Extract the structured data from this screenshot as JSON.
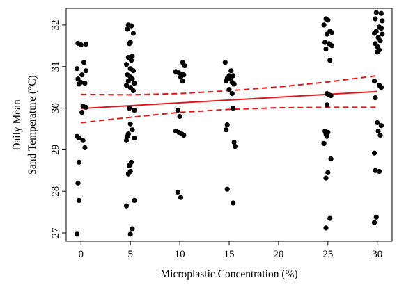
{
  "chart_data": {
    "type": "scatter",
    "xlabel": "Microplastic Concentration (%)",
    "ylabel_lines": [
      "Daily Mean",
      "Sand Temperature (°C)"
    ],
    "xlim": [
      -1.5,
      31.5
    ],
    "ylim": [
      26.8,
      32.4
    ],
    "x_ticks": [
      0,
      5,
      10,
      15,
      20,
      25,
      30
    ],
    "y_ticks": [
      27,
      28,
      29,
      30,
      31,
      32
    ],
    "grid": false,
    "legend": "none",
    "colors": {
      "points": "#000000",
      "fit": "#e8161b",
      "ci": "#e8161b"
    },
    "fit_line": {
      "style": "solid",
      "x": [
        0,
        30
      ],
      "y": [
        29.99,
        30.4
      ]
    },
    "ci_upper": {
      "style": "dashed",
      "x": [
        0,
        5,
        10,
        15,
        20,
        25,
        30
      ],
      "y": [
        30.33,
        30.32,
        30.35,
        30.42,
        30.51,
        30.63,
        30.78
      ]
    },
    "ci_lower": {
      "style": "dashed",
      "x": [
        0,
        5,
        10,
        15,
        20,
        25,
        30
      ],
      "y": [
        29.65,
        29.78,
        29.9,
        29.97,
        30.01,
        30.02,
        30.02
      ]
    },
    "points": [
      {
        "x": -0.3,
        "y": 31.56
      },
      {
        "x": 0.0,
        "y": 31.52
      },
      {
        "x": 0.5,
        "y": 31.54
      },
      {
        "x": 0.3,
        "y": 31.1
      },
      {
        "x": -0.4,
        "y": 30.95
      },
      {
        "x": 0.5,
        "y": 30.9
      },
      {
        "x": 0.1,
        "y": 30.8
      },
      {
        "x": -0.3,
        "y": 30.7
      },
      {
        "x": 0.0,
        "y": 30.62
      },
      {
        "x": -0.2,
        "y": 30.58
      },
      {
        "x": 0.4,
        "y": 30.6
      },
      {
        "x": 0.2,
        "y": 30.05
      },
      {
        "x": 0.5,
        "y": 30.02
      },
      {
        "x": 0.1,
        "y": 29.9
      },
      {
        "x": -0.4,
        "y": 29.32
      },
      {
        "x": -0.2,
        "y": 29.28
      },
      {
        "x": 0.2,
        "y": 29.22
      },
      {
        "x": 0.4,
        "y": 29.05
      },
      {
        "x": -0.2,
        "y": 28.7
      },
      {
        "x": -0.3,
        "y": 28.2
      },
      {
        "x": -0.2,
        "y": 27.78
      },
      {
        "x": -0.4,
        "y": 26.97
      },
      {
        "x": 4.8,
        "y": 32.0
      },
      {
        "x": 5.1,
        "y": 31.98
      },
      {
        "x": 4.7,
        "y": 31.9
      },
      {
        "x": 5.3,
        "y": 31.8
      },
      {
        "x": 5.0,
        "y": 31.58
      },
      {
        "x": 4.9,
        "y": 31.55
      },
      {
        "x": 5.2,
        "y": 31.25
      },
      {
        "x": 4.8,
        "y": 31.22
      },
      {
        "x": 5.1,
        "y": 31.15
      },
      {
        "x": 4.6,
        "y": 31.05
      },
      {
        "x": 5.0,
        "y": 30.95
      },
      {
        "x": 5.3,
        "y": 30.9
      },
      {
        "x": 4.7,
        "y": 30.8
      },
      {
        "x": 5.0,
        "y": 30.75
      },
      {
        "x": 5.2,
        "y": 30.7
      },
      {
        "x": 4.8,
        "y": 30.65
      },
      {
        "x": 5.4,
        "y": 30.6
      },
      {
        "x": 4.6,
        "y": 30.55
      },
      {
        "x": 5.0,
        "y": 30.5
      },
      {
        "x": 5.3,
        "y": 30.42
      },
      {
        "x": 4.9,
        "y": 30.0
      },
      {
        "x": 5.4,
        "y": 29.95
      },
      {
        "x": 5.0,
        "y": 29.62
      },
      {
        "x": 5.2,
        "y": 29.48
      },
      {
        "x": 4.8,
        "y": 29.38
      },
      {
        "x": 4.7,
        "y": 29.32
      },
      {
        "x": 5.4,
        "y": 29.28
      },
      {
        "x": 4.6,
        "y": 29.22
      },
      {
        "x": 5.1,
        "y": 28.7
      },
      {
        "x": 4.9,
        "y": 28.62
      },
      {
        "x": 5.0,
        "y": 28.48
      },
      {
        "x": 4.8,
        "y": 28.42
      },
      {
        "x": 5.4,
        "y": 27.78
      },
      {
        "x": 4.6,
        "y": 27.65
      },
      {
        "x": 5.2,
        "y": 27.1
      },
      {
        "x": 5.0,
        "y": 26.97
      },
      {
        "x": 10.3,
        "y": 31.1
      },
      {
        "x": 10.5,
        "y": 31.02
      },
      {
        "x": 9.6,
        "y": 30.88
      },
      {
        "x": 9.9,
        "y": 30.85
      },
      {
        "x": 10.2,
        "y": 30.82
      },
      {
        "x": 10.4,
        "y": 30.8
      },
      {
        "x": 10.1,
        "y": 30.75
      },
      {
        "x": 10.3,
        "y": 30.65
      },
      {
        "x": 9.8,
        "y": 29.95
      },
      {
        "x": 10.0,
        "y": 29.8
      },
      {
        "x": 9.6,
        "y": 29.45
      },
      {
        "x": 9.9,
        "y": 29.42
      },
      {
        "x": 10.2,
        "y": 29.38
      },
      {
        "x": 10.4,
        "y": 29.35
      },
      {
        "x": 9.8,
        "y": 27.98
      },
      {
        "x": 10.1,
        "y": 27.85
      },
      {
        "x": 14.6,
        "y": 31.1
      },
      {
        "x": 15.2,
        "y": 30.9
      },
      {
        "x": 15.0,
        "y": 30.78
      },
      {
        "x": 15.4,
        "y": 30.78
      },
      {
        "x": 14.8,
        "y": 30.72
      },
      {
        "x": 15.1,
        "y": 30.7
      },
      {
        "x": 14.7,
        "y": 30.65
      },
      {
        "x": 15.3,
        "y": 30.62
      },
      {
        "x": 15.5,
        "y": 30.58
      },
      {
        "x": 15.0,
        "y": 30.45
      },
      {
        "x": 15.3,
        "y": 30.35
      },
      {
        "x": 15.4,
        "y": 30.0
      },
      {
        "x": 14.8,
        "y": 29.6
      },
      {
        "x": 14.7,
        "y": 29.48
      },
      {
        "x": 15.5,
        "y": 29.18
      },
      {
        "x": 15.6,
        "y": 29.08
      },
      {
        "x": 14.8,
        "y": 28.05
      },
      {
        "x": 15.4,
        "y": 27.72
      },
      {
        "x": 24.8,
        "y": 32.15
      },
      {
        "x": 25.0,
        "y": 32.12
      },
      {
        "x": 24.6,
        "y": 32.0
      },
      {
        "x": 25.2,
        "y": 31.85
      },
      {
        "x": 25.4,
        "y": 31.82
      },
      {
        "x": 24.9,
        "y": 31.78
      },
      {
        "x": 24.7,
        "y": 31.58
      },
      {
        "x": 25.1,
        "y": 31.55
      },
      {
        "x": 25.4,
        "y": 31.5
      },
      {
        "x": 24.8,
        "y": 31.42
      },
      {
        "x": 25.2,
        "y": 31.15
      },
      {
        "x": 24.9,
        "y": 30.35
      },
      {
        "x": 25.1,
        "y": 30.32
      },
      {
        "x": 25.3,
        "y": 30.3
      },
      {
        "x": 24.9,
        "y": 30.08
      },
      {
        "x": 24.7,
        "y": 29.45
      },
      {
        "x": 25.0,
        "y": 29.42
      },
      {
        "x": 24.8,
        "y": 29.38
      },
      {
        "x": 24.9,
        "y": 29.32
      },
      {
        "x": 24.6,
        "y": 29.15
      },
      {
        "x": 25.3,
        "y": 28.78
      },
      {
        "x": 25.0,
        "y": 28.45
      },
      {
        "x": 24.8,
        "y": 28.32
      },
      {
        "x": 25.2,
        "y": 27.35
      },
      {
        "x": 24.8,
        "y": 27.12
      },
      {
        "x": 29.9,
        "y": 32.3
      },
      {
        "x": 30.4,
        "y": 32.28
      },
      {
        "x": 29.8,
        "y": 32.15
      },
      {
        "x": 30.5,
        "y": 32.1
      },
      {
        "x": 30.2,
        "y": 31.95
      },
      {
        "x": 30.4,
        "y": 31.92
      },
      {
        "x": 29.9,
        "y": 31.85
      },
      {
        "x": 29.7,
        "y": 31.8
      },
      {
        "x": 30.5,
        "y": 31.78
      },
      {
        "x": 30.1,
        "y": 31.7
      },
      {
        "x": 30.3,
        "y": 31.62
      },
      {
        "x": 29.8,
        "y": 31.55
      },
      {
        "x": 30.0,
        "y": 31.48
      },
      {
        "x": 30.2,
        "y": 31.4
      },
      {
        "x": 30.0,
        "y": 31.35
      },
      {
        "x": 29.7,
        "y": 30.65
      },
      {
        "x": 30.2,
        "y": 30.55
      },
      {
        "x": 30.4,
        "y": 30.5
      },
      {
        "x": 29.8,
        "y": 30.25
      },
      {
        "x": 30.0,
        "y": 29.65
      },
      {
        "x": 30.4,
        "y": 29.58
      },
      {
        "x": 30.1,
        "y": 29.45
      },
      {
        "x": 30.3,
        "y": 29.35
      },
      {
        "x": 29.7,
        "y": 28.92
      },
      {
        "x": 29.8,
        "y": 28.5
      },
      {
        "x": 30.2,
        "y": 28.48
      },
      {
        "x": 29.9,
        "y": 27.38
      },
      {
        "x": 29.7,
        "y": 27.25
      }
    ]
  }
}
